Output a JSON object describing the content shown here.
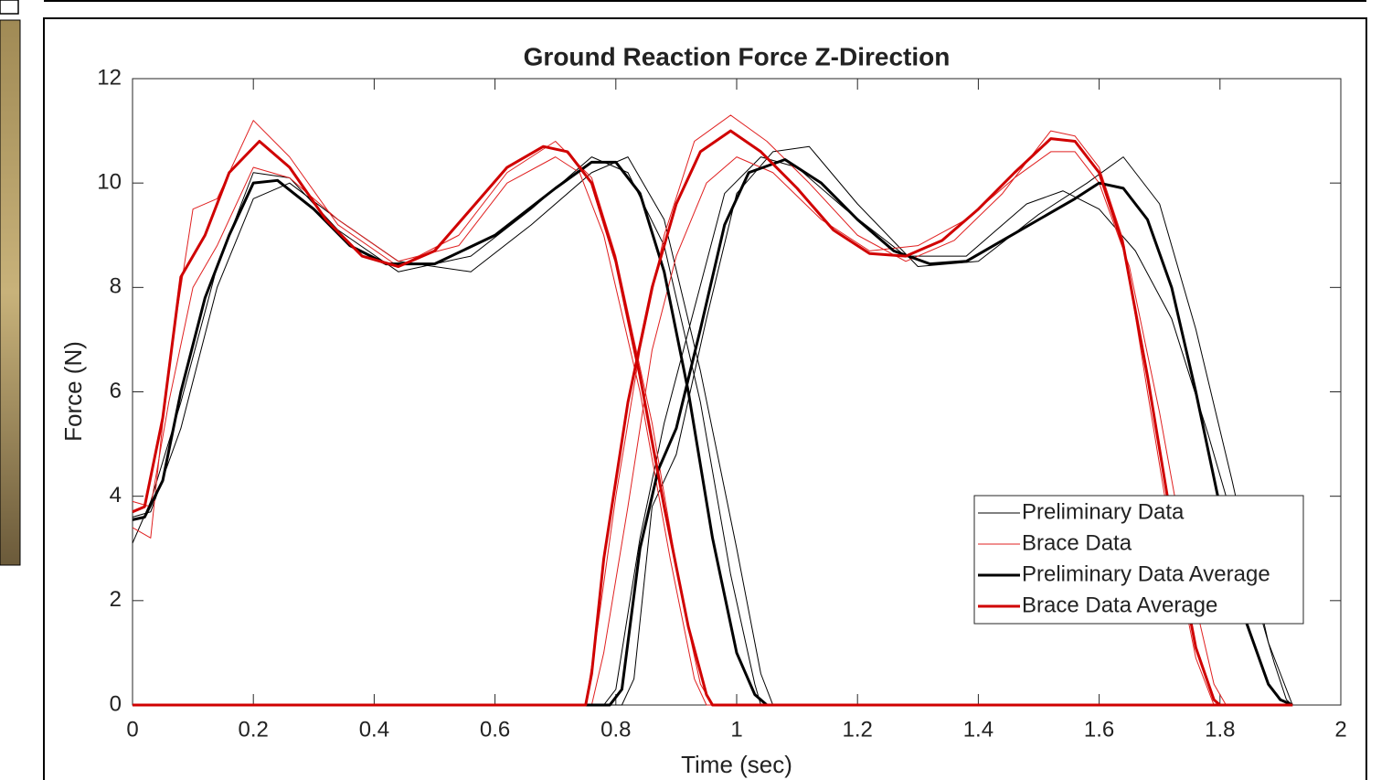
{
  "chart_data": {
    "type": "line",
    "title": "Ground Reaction Force Z-Direction",
    "xlabel": "Time (sec)",
    "ylabel": "Force (N)",
    "xlim": [
      0,
      2
    ],
    "xticks": [
      0,
      0.2,
      0.4,
      0.6,
      0.8,
      1,
      1.2,
      1.4,
      1.6,
      1.8,
      2
    ],
    "ylim": [
      0,
      12
    ],
    "yticks": [
      0,
      2,
      4,
      6,
      8,
      10,
      12
    ],
    "legend": "lower right",
    "series": [
      {
        "name": "Preliminary Data",
        "color": "#000000",
        "line_width": 1,
        "x": [
          0,
          0.03,
          0.08,
          0.14,
          0.2,
          0.26,
          0.34,
          0.44,
          0.56,
          0.66,
          0.76,
          0.82,
          0.88,
          0.94,
          0.99,
          1.03,
          1.04,
          1.92
        ],
        "values": [
          3.1,
          3.9,
          5.8,
          8.4,
          10.2,
          10.1,
          9.1,
          8.3,
          8.6,
          9.5,
          10.5,
          10.2,
          8.8,
          5.8,
          2.5,
          0.4,
          0,
          0
        ]
      },
      {
        "name": "Preliminary Data",
        "color": "#000000",
        "line_width": 1,
        "x": [
          0,
          0.03,
          0.08,
          0.14,
          0.2,
          0.26,
          0.34,
          0.44,
          0.56,
          0.66,
          0.76,
          0.82,
          0.88,
          0.94,
          1.0,
          1.04,
          1.06,
          1.92
        ],
        "values": [
          3.6,
          3.7,
          5.3,
          8.0,
          9.7,
          10.0,
          9.3,
          8.5,
          8.3,
          9.2,
          10.2,
          10.5,
          9.3,
          6.4,
          3.0,
          0.6,
          0,
          0
        ]
      },
      {
        "name": "Preliminary Data",
        "color": "#000000",
        "line_width": 1,
        "x": [
          0,
          0.81,
          0.83,
          0.86,
          0.9,
          0.95,
          1.0,
          1.06,
          1.12,
          1.2,
          1.3,
          1.4,
          1.5,
          1.58,
          1.64,
          1.7,
          1.76,
          1.82,
          1.88,
          1.92
        ],
        "values": [
          0,
          0,
          0.5,
          3.8,
          4.8,
          7.4,
          9.8,
          10.6,
          10.7,
          9.6,
          8.4,
          8.5,
          9.4,
          10.0,
          10.5,
          9.6,
          7.2,
          4.3,
          1.2,
          0
        ]
      },
      {
        "name": "Preliminary Data",
        "color": "#000000",
        "line_width": 1,
        "x": [
          0,
          0.78,
          0.8,
          0.84,
          0.88,
          0.93,
          0.98,
          1.04,
          1.1,
          1.18,
          1.28,
          1.38,
          1.48,
          1.54,
          1.6,
          1.66,
          1.72,
          1.78,
          1.84,
          1.89,
          1.91,
          1.92
        ],
        "values": [
          0,
          0,
          0.3,
          3.2,
          5.4,
          7.6,
          9.8,
          10.5,
          10.3,
          9.5,
          8.6,
          8.6,
          9.6,
          9.85,
          9.5,
          8.7,
          7.4,
          5.2,
          2.8,
          0.8,
          0.1,
          0
        ]
      },
      {
        "name": "Brace Data",
        "color": "#e02020",
        "line_width": 1,
        "x": [
          0,
          0.03,
          0.06,
          0.1,
          0.14,
          0.2,
          0.26,
          0.34,
          0.44,
          0.54,
          0.62,
          0.7,
          0.76,
          0.8,
          0.86,
          0.91,
          0.94,
          0.96,
          1.92
        ],
        "values": [
          3.4,
          3.2,
          6.5,
          9.5,
          9.7,
          11.2,
          10.5,
          9.2,
          8.4,
          9.0,
          10.2,
          10.8,
          10.1,
          8.6,
          5.4,
          2.0,
          0.4,
          0,
          0
        ]
      },
      {
        "name": "Brace Data",
        "color": "#e02020",
        "line_width": 1,
        "x": [
          0,
          0.03,
          0.06,
          0.1,
          0.14,
          0.2,
          0.26,
          0.34,
          0.44,
          0.54,
          0.62,
          0.7,
          0.74,
          0.78,
          0.84,
          0.89,
          0.93,
          0.95,
          1.92
        ],
        "values": [
          3.9,
          3.8,
          5.8,
          8.0,
          8.8,
          10.3,
          10.1,
          9.3,
          8.5,
          8.8,
          10.0,
          10.5,
          10.2,
          9.0,
          6.0,
          2.8,
          0.5,
          0,
          0
        ]
      },
      {
        "name": "Brace Data",
        "color": "#e02020",
        "line_width": 1,
        "x": [
          0,
          0.75,
          0.77,
          0.8,
          0.84,
          0.88,
          0.93,
          0.99,
          1.05,
          1.12,
          1.2,
          1.28,
          1.36,
          1.44,
          1.52,
          1.56,
          1.6,
          1.64,
          1.68,
          1.72,
          1.76,
          1.79,
          1.92
        ],
        "values": [
          0,
          0,
          1.5,
          4.0,
          6.8,
          9.0,
          10.8,
          11.3,
          10.8,
          10.0,
          9.0,
          8.5,
          8.9,
          9.8,
          11.0,
          10.9,
          10.3,
          8.9,
          6.0,
          3.2,
          0.9,
          0,
          0
        ]
      },
      {
        "name": "Brace Data",
        "color": "#e02020",
        "line_width": 1,
        "x": [
          0,
          0.76,
          0.78,
          0.82,
          0.86,
          0.9,
          0.95,
          1.0,
          1.06,
          1.14,
          1.22,
          1.3,
          1.38,
          1.46,
          1.52,
          1.56,
          1.6,
          1.65,
          1.7,
          1.75,
          1.79,
          1.81,
          1.92
        ],
        "values": [
          0,
          0,
          1.0,
          3.8,
          6.8,
          8.6,
          10.0,
          10.5,
          10.2,
          9.3,
          8.7,
          8.8,
          9.3,
          10.1,
          10.6,
          10.6,
          10.0,
          8.4,
          5.6,
          2.4,
          0.4,
          0,
          0
        ]
      },
      {
        "name": "Preliminary Data Average",
        "color": "#000000",
        "line_width": 3,
        "x": [
          0,
          0.02,
          0.05,
          0.08,
          0.12,
          0.16,
          0.2,
          0.24,
          0.3,
          0.36,
          0.42,
          0.5,
          0.6,
          0.7,
          0.76,
          0.8,
          0.84,
          0.88,
          0.92,
          0.96,
          1.0,
          1.03,
          1.05,
          1.92
        ],
        "values": [
          3.55,
          3.6,
          4.3,
          6.0,
          7.8,
          9.0,
          10.0,
          10.05,
          9.5,
          8.8,
          8.45,
          8.45,
          9.0,
          9.9,
          10.4,
          10.4,
          9.8,
          8.3,
          6.0,
          3.2,
          1.0,
          0.2,
          0,
          0
        ]
      },
      {
        "name": "Preliminary Data Average",
        "color": "#000000",
        "line_width": 3,
        "x": [
          0,
          0.79,
          0.81,
          0.84,
          0.87,
          0.9,
          0.94,
          0.98,
          1.02,
          1.08,
          1.14,
          1.2,
          1.26,
          1.32,
          1.38,
          1.44,
          1.5,
          1.56,
          1.6,
          1.64,
          1.68,
          1.72,
          1.76,
          1.8,
          1.84,
          1.88,
          1.9,
          1.92
        ],
        "values": [
          0,
          0,
          0.3,
          3.0,
          4.5,
          5.3,
          7.2,
          9.2,
          10.2,
          10.45,
          10.0,
          9.3,
          8.7,
          8.45,
          8.5,
          8.9,
          9.3,
          9.7,
          10.0,
          9.9,
          9.3,
          8.0,
          6.0,
          3.8,
          1.7,
          0.4,
          0.1,
          0
        ]
      },
      {
        "name": "Brace Data Average",
        "color": "#d00000",
        "line_width": 3,
        "x": [
          0,
          0.02,
          0.05,
          0.08,
          0.12,
          0.16,
          0.21,
          0.26,
          0.32,
          0.38,
          0.44,
          0.5,
          0.56,
          0.62,
          0.68,
          0.72,
          0.76,
          0.8,
          0.84,
          0.88,
          0.92,
          0.95,
          0.96,
          1.92
        ],
        "values": [
          3.7,
          3.8,
          5.5,
          8.2,
          9.0,
          10.2,
          10.8,
          10.3,
          9.3,
          8.6,
          8.4,
          8.7,
          9.5,
          10.3,
          10.7,
          10.6,
          10.0,
          8.5,
          6.3,
          3.8,
          1.5,
          0.2,
          0,
          0
        ]
      },
      {
        "name": "Brace Data Average",
        "color": "#d00000",
        "line_width": 3,
        "x": [
          0,
          0.75,
          0.76,
          0.78,
          0.82,
          0.86,
          0.9,
          0.94,
          0.99,
          1.04,
          1.1,
          1.16,
          1.22,
          1.28,
          1.34,
          1.4,
          1.46,
          1.52,
          1.56,
          1.6,
          1.64,
          1.68,
          1.72,
          1.76,
          1.79,
          1.8,
          1.92
        ],
        "values": [
          0,
          0,
          0.6,
          2.8,
          5.8,
          8.0,
          9.6,
          10.6,
          11.0,
          10.6,
          9.9,
          9.1,
          8.65,
          8.6,
          8.9,
          9.5,
          10.2,
          10.85,
          10.8,
          10.2,
          8.8,
          6.3,
          3.5,
          1.1,
          0.1,
          0,
          0
        ]
      }
    ]
  }
}
